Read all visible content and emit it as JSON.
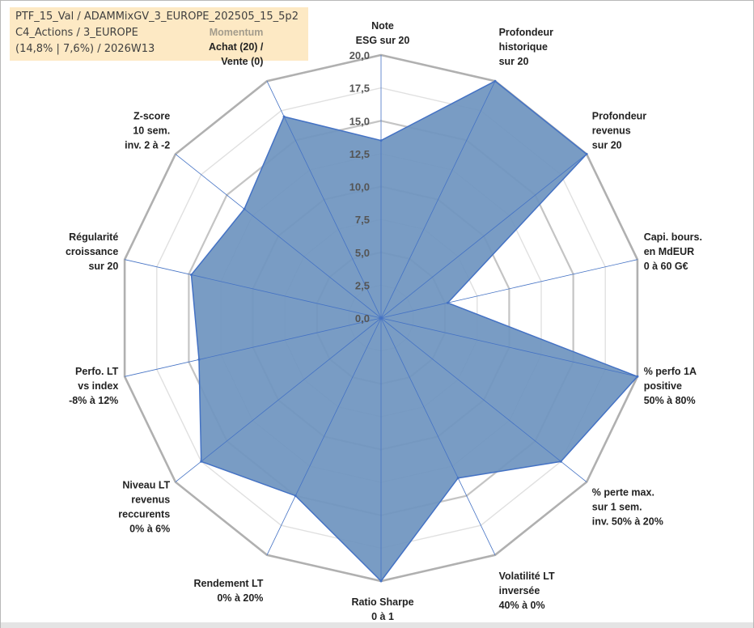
{
  "info": {
    "line1": "PTF_15_Val / ADAMMixGV_3_EUROPE_202505_15_5p2",
    "line2": "C4_Actions / 3_EUROPE",
    "line3": "(14,8% | 7,6%) / 2026W13"
  },
  "chart_data": {
    "type": "radar",
    "rmin": 0,
    "rmax": 20,
    "ticks": [
      "0,0",
      "2,5",
      "5,0",
      "7,5",
      "10,0",
      "12,5",
      "15,0",
      "17,5",
      "20,0"
    ],
    "axes": [
      {
        "label": [
          "Note",
          "ESG sur 20"
        ],
        "value": 13.5
      },
      {
        "label": [
          "Profondeur",
          "historique",
          "sur 20"
        ],
        "value": 20
      },
      {
        "label": [
          "Profondeur",
          "revenus",
          "sur 20"
        ],
        "value": 20
      },
      {
        "label": [
          "Capi. bours.",
          "en MdEUR",
          "0 à 60 G€"
        ],
        "value": 5.2
      },
      {
        "label": [
          "% perfo 1A",
          "positive",
          "50% à 80%"
        ],
        "value": 20
      },
      {
        "label": [
          "% perte max.",
          "sur 1 sem.",
          "inv. 50% à 20%"
        ],
        "value": 17.5
      },
      {
        "label": [
          "Volatilité LT",
          "inversée",
          "40% à 0%"
        ],
        "value": 13.5
      },
      {
        "label": [
          "Ratio Sharpe",
          "0 à 1"
        ],
        "value": 20
      },
      {
        "label": [
          "Rendement LT",
          "0% à 20%"
        ],
        "value": 15.0
      },
      {
        "label": [
          "Niveau LT",
          "revenus",
          "reccurents",
          "0% à 6%"
        ],
        "value": 17.5
      },
      {
        "label": [
          "Perfo. LT",
          "vs index",
          "-8% à 12%"
        ],
        "value": 14.2
      },
      {
        "label": [
          "Régularité",
          "croissance",
          "sur 20"
        ],
        "value": 14.8
      },
      {
        "label": [
          "Z-score",
          "10 sem.",
          "inv. 2 à -2"
        ],
        "value": 13.3
      },
      {
        "label": [
          "Momentum",
          "Achat (20) /",
          "Vente (0)"
        ],
        "value": 17.0
      }
    ],
    "grid": true,
    "fill_color": "#6f95c0",
    "line_color": "#4472c4"
  }
}
